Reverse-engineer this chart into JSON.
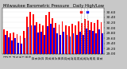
{
  "title": "Milwaukee Barometric Pressure   Daily High/Low",
  "title_fontsize": 3.8,
  "bar_width": 0.45,
  "high_color": "#ff0000",
  "low_color": "#0000ff",
  "background_color": "#c8c8c8",
  "plot_bg_color": "#ffffff",
  "ylim": [
    29.0,
    30.75
  ],
  "yticks": [
    29.0,
    29.2,
    29.4,
    29.6,
    29.8,
    30.0,
    30.2,
    30.4,
    30.6
  ],
  "ylabel_fontsize": 3.2,
  "xlabel_fontsize": 2.8,
  "categories": [
    "1",
    "2",
    "3",
    "4",
    "5",
    "6",
    "7",
    "8",
    "9",
    "10",
    "11",
    "12",
    "13",
    "14",
    "15",
    "16",
    "17",
    "18",
    "19",
    "20",
    "21",
    "22",
    "23",
    "24",
    "25",
    "26",
    "27",
    "28",
    "29",
    "30",
    "31"
  ],
  "highs": [
    29.95,
    29.88,
    29.8,
    29.82,
    29.75,
    29.7,
    29.88,
    30.42,
    30.62,
    30.52,
    30.22,
    30.15,
    30.08,
    30.48,
    30.62,
    30.38,
    30.18,
    30.12,
    30.25,
    30.1,
    30.05,
    30.15,
    30.1,
    30.25,
    30.18,
    30.35,
    30.28,
    30.22,
    30.18,
    30.3,
    30.2
  ],
  "lows": [
    29.72,
    29.65,
    29.52,
    29.6,
    29.42,
    29.38,
    29.62,
    30.02,
    30.08,
    30.08,
    29.82,
    29.85,
    29.72,
    30.05,
    30.15,
    30.0,
    29.78,
    29.72,
    29.85,
    29.72,
    29.68,
    29.78,
    29.72,
    29.85,
    29.72,
    29.98,
    29.92,
    29.88,
    29.78,
    29.95,
    29.78
  ],
  "dashed_lines": [
    23.5,
    24.5,
    25.5
  ],
  "legend_dots_high": ".",
  "legend_dots_low": ".",
  "yaxis_side": "right"
}
